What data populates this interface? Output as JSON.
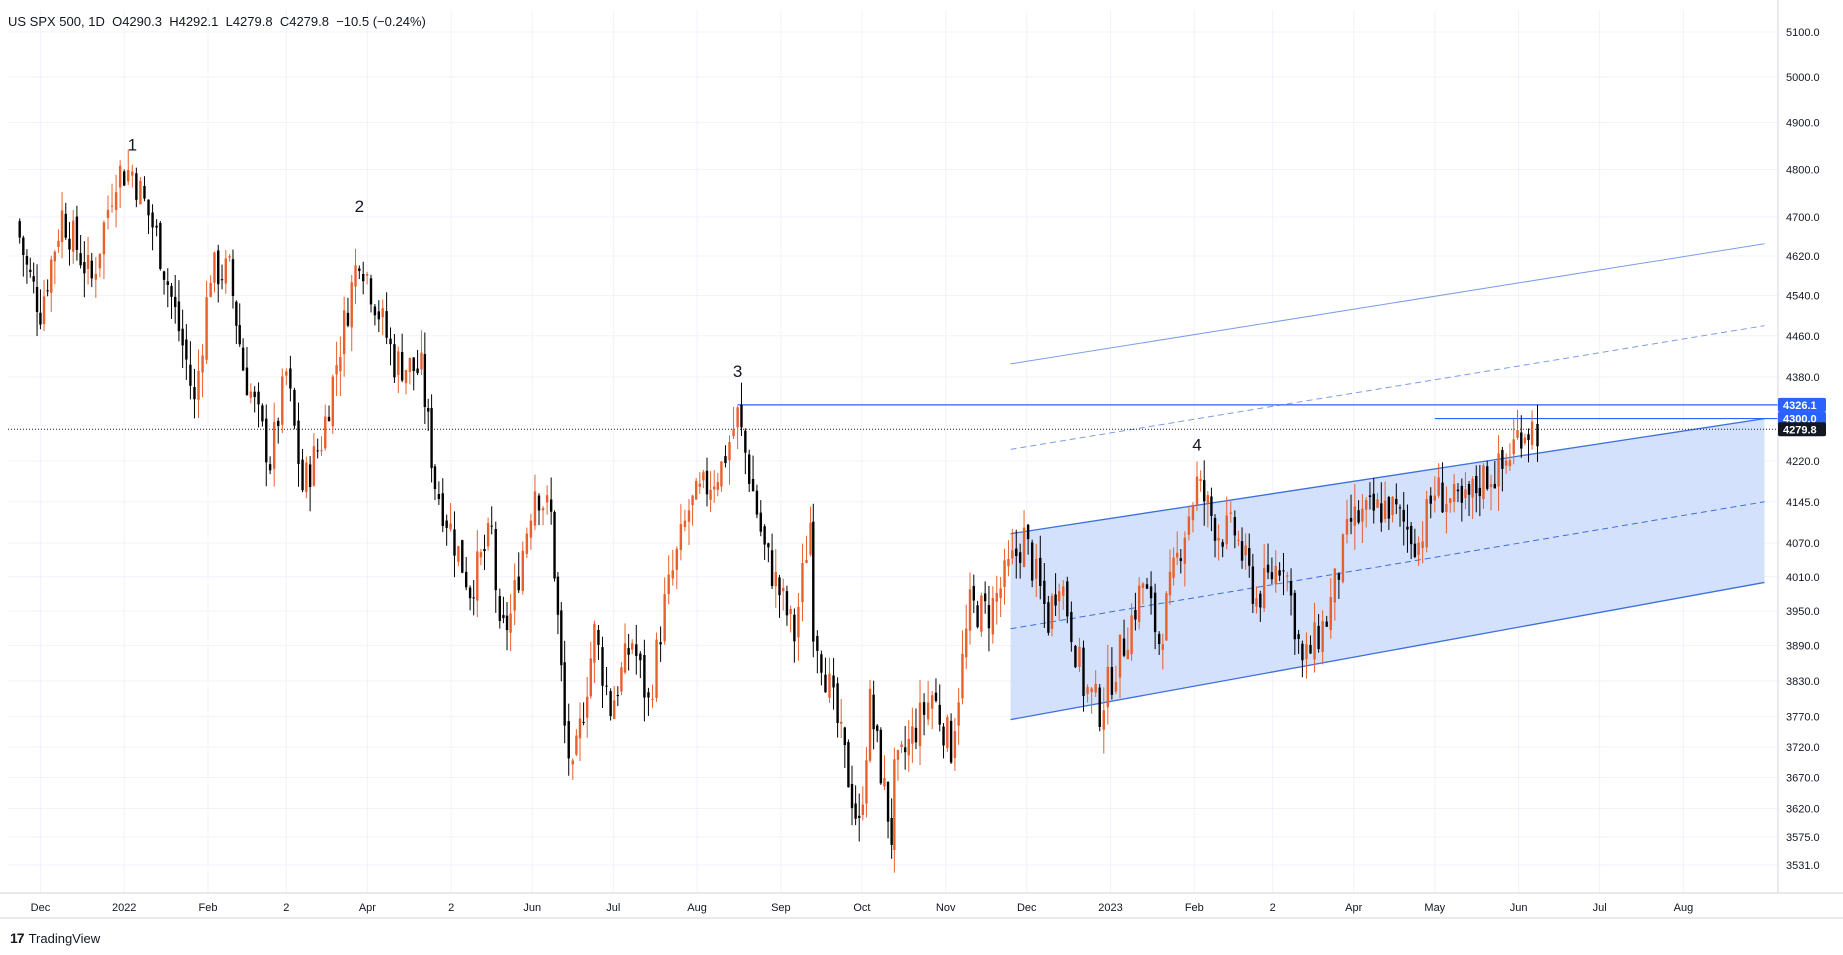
{
  "header": {
    "symbol": "US SPX 500",
    "interval": "1D",
    "open": "O4290.3",
    "high": "H4292.1",
    "low": "L4279.8",
    "close": "C4279.8",
    "change": "−10.5 (−0.24%)"
  },
  "brand": {
    "name": "TradingView"
  },
  "colors": {
    "up": "#f7525f",
    "down": "#000000",
    "channel": "#3c6fdc",
    "channel_fill": "#cddcfb",
    "grid": "#f0f3fa"
  },
  "chart_data": {
    "type": "candlestick",
    "y_axis": {
      "ticks": [
        "5100.0",
        "5000.0",
        "4900.0",
        "4800.0",
        "4700.0",
        "4620.0",
        "4540.0",
        "4460.0",
        "4380.0",
        "4220.0",
        "4145.0",
        "4070.0",
        "4010.0",
        "3950.0",
        "3890.0",
        "3830.0",
        "3770.0",
        "3720.0",
        "3670.0",
        "3620.0",
        "3575.0",
        "3531.0"
      ],
      "scale": "log",
      "range": [
        3490,
        5150
      ]
    },
    "x_axis": {
      "labels": [
        "Dec",
        "2022",
        "Feb",
        "2",
        "Apr",
        "2",
        "Jun",
        "Jul",
        "Aug",
        "Sep",
        "Oct",
        "Nov",
        "Dec",
        "2023",
        "Feb",
        "2",
        "Apr",
        "May",
        "Jun",
        "Jul",
        "Aug"
      ]
    },
    "price_labels": [
      {
        "value": 4326.1,
        "text": "4326.1",
        "color": "#2962ff"
      },
      {
        "value": 4300.0,
        "text": "4300.0",
        "color": "#2962ff"
      },
      {
        "value": 4279.8,
        "text": "4279.8",
        "color": "#131722"
      }
    ],
    "wave_labels": [
      "1",
      "2",
      "3",
      "4"
    ],
    "series": [
      {
        "name": "US SPX 500",
        "path": [
          [
            "2021-11-22",
            4690
          ],
          [
            "2021-11-26",
            4595
          ],
          [
            "2021-12-01",
            4513
          ],
          [
            "2021-12-09",
            4705
          ],
          [
            "2021-12-20",
            4570
          ],
          [
            "2021-12-29",
            4793
          ],
          [
            "2022-01-04",
            4796
          ],
          [
            "2022-01-13",
            4660
          ],
          [
            "2022-01-24",
            4410
          ],
          [
            "2022-01-27",
            4325
          ],
          [
            "2022-02-02",
            4590
          ],
          [
            "2022-02-09",
            4587
          ],
          [
            "2022-02-14",
            4400
          ],
          [
            "2022-02-24",
            4220
          ],
          [
            "2022-03-02",
            4386
          ],
          [
            "2022-03-08",
            4170
          ],
          [
            "2022-03-15",
            4260
          ],
          [
            "2022-03-29",
            4630
          ],
          [
            "2022-04-11",
            4410
          ],
          [
            "2022-04-21",
            4390
          ],
          [
            "2022-04-26",
            4180
          ],
          [
            "2022-05-09",
            3990
          ],
          [
            "2022-05-17",
            4088
          ],
          [
            "2022-05-20",
            3901
          ],
          [
            "2022-05-24",
            3941
          ],
          [
            "2022-06-02",
            4176
          ],
          [
            "2022-06-08",
            4117
          ],
          [
            "2022-06-13",
            3750
          ],
          [
            "2022-06-16",
            3666
          ],
          [
            "2022-06-24",
            3911
          ],
          [
            "2022-06-30",
            3785
          ],
          [
            "2022-07-08",
            3899
          ],
          [
            "2022-07-14",
            3790
          ],
          [
            "2022-07-20",
            3960
          ],
          [
            "2022-07-29",
            4130
          ],
          [
            "2022-08-10",
            4210
          ],
          [
            "2022-08-16",
            4305
          ],
          [
            "2022-08-26",
            4057
          ],
          [
            "2022-09-06",
            3908
          ],
          [
            "2022-09-12",
            4110
          ],
          [
            "2022-09-13",
            3932
          ],
          [
            "2022-09-22",
            3757
          ],
          [
            "2022-09-30",
            3585
          ],
          [
            "2022-10-04",
            3790
          ],
          [
            "2022-10-12",
            3577
          ],
          [
            "2022-10-13",
            3669
          ],
          [
            "2022-10-21",
            3752
          ],
          [
            "2022-10-27",
            3807
          ],
          [
            "2022-11-03",
            3720
          ],
          [
            "2022-11-10",
            3956
          ],
          [
            "2022-11-17",
            3946
          ],
          [
            "2022-11-30",
            4080
          ],
          [
            "2022-12-09",
            3934
          ],
          [
            "2022-12-13",
            4019
          ],
          [
            "2022-12-22",
            3822
          ],
          [
            "2022-12-28",
            3783
          ],
          [
            "2023-01-06",
            3895
          ],
          [
            "2023-01-13",
            3999
          ],
          [
            "2023-01-19",
            3898
          ],
          [
            "2023-01-27",
            4070
          ],
          [
            "2023-02-02",
            4179
          ],
          [
            "2023-02-10",
            4090
          ],
          [
            "2023-02-16",
            4090
          ],
          [
            "2023-02-24",
            3970
          ],
          [
            "2023-03-06",
            4048
          ],
          [
            "2023-03-13",
            3855
          ],
          [
            "2023-03-22",
            3936
          ],
          [
            "2023-03-31",
            4109
          ],
          [
            "2023-04-14",
            4138
          ],
          [
            "2023-04-25",
            4071
          ],
          [
            "2023-05-01",
            4167
          ],
          [
            "2023-05-11",
            4130
          ],
          [
            "2023-05-19",
            4191
          ],
          [
            "2023-05-26",
            4205
          ],
          [
            "2023-06-02",
            4282
          ],
          [
            "2023-06-06",
            4283
          ],
          [
            "2023-06-08",
            4279.8
          ]
        ]
      }
    ],
    "annotations": {
      "channel_upper": [
        [
          "2022-11-25",
          4087
        ],
        [
          "2023-08-31",
          4300
        ]
      ],
      "channel_lower": [
        [
          "2022-11-25",
          3765
        ],
        [
          "2023-08-31",
          4000
        ]
      ],
      "channel_mid": [
        [
          "2022-11-25",
          3919
        ],
        [
          "2023-08-31",
          4145
        ]
      ],
      "upper_line": [
        [
          "2022-11-25",
          4405
        ],
        [
          "2023-08-31",
          4645
        ]
      ],
      "upper_dashed": [
        [
          "2022-11-25",
          4242
        ],
        [
          "2023-08-31",
          4480
        ]
      ],
      "hline_4326": {
        "value": 4326.1,
        "from": "2022-08-16"
      },
      "hline_4300": {
        "value": 4300.0,
        "from": "2023-05-01"
      },
      "last_price_line": 4279.8,
      "wave_points": [
        [
          "2022-01-04",
          4840
        ],
        [
          "2022-03-29",
          4710
        ],
        [
          "2022-08-16",
          4380
        ],
        [
          "2023-02-02",
          4240
        ]
      ]
    }
  }
}
